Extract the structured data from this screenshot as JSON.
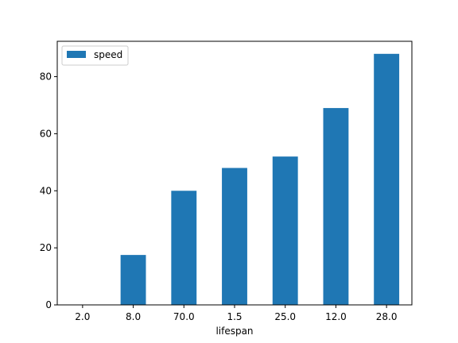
{
  "chart_data": {
    "type": "bar",
    "categories": [
      "2.0",
      "8.0",
      "70.0",
      "1.5",
      "25.0",
      "12.0",
      "28.0"
    ],
    "series": [
      {
        "name": "speed",
        "values": [
          0.1,
          17.5,
          40,
          48,
          52,
          69,
          88
        ],
        "color": "#1f77b4"
      }
    ],
    "xlabel": "lifespan",
    "ylabel": "",
    "ylim": [
      0,
      92.4
    ],
    "yticks": [
      0,
      20,
      40,
      60,
      80
    ],
    "grid": false,
    "legend_position": "top-left"
  }
}
